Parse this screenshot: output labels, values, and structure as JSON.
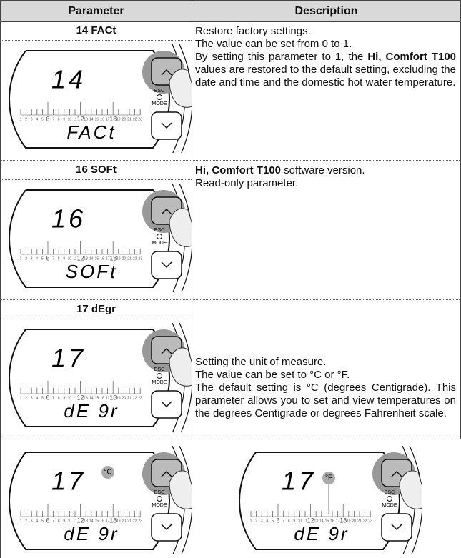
{
  "table": {
    "headers": [
      "Parameter",
      "Description"
    ],
    "rows": [
      {
        "parameter": "14 FACt",
        "display": {
          "number": "14",
          "code": "FACt"
        },
        "description": [
          [
            {
              "text": "Restore factory settings.",
              "bold": false
            }
          ],
          [
            {
              "text": "The value can be set from 0 to 1.",
              "bold": false
            }
          ],
          [
            {
              "text": "By setting this parameter to 1, the ",
              "bold": false
            },
            {
              "text": "Hi, Comfort T100",
              "bold": true
            },
            {
              "text": " values are restored to the default setting, excluding the date and time and the domestic hot water temperature.",
              "bold": false
            }
          ]
        ]
      },
      {
        "parameter": "16 SOFt",
        "display": {
          "number": "16",
          "code": "SOFt"
        },
        "description": [
          [
            {
              "text": "Hi, Comfort T100",
              "bold": true
            },
            {
              "text": " software version.",
              "bold": false
            }
          ],
          [
            {
              "text": "Read-only parameter.",
              "bold": false
            }
          ]
        ]
      },
      {
        "parameter": "17 dEgr",
        "display": {
          "number": "17",
          "code": "dE 9r"
        },
        "description": [
          [
            {
              "text": "Setting the unit of measure.",
              "bold": false
            }
          ],
          [
            {
              "text": "The value can be set to °C or °F.",
              "bold": false
            }
          ],
          [
            {
              "text": "The default setting is °C (degrees Centigrade). This parameter allows you to set and view temperatures on the degrees Centigrade or degrees Fahrenheit scale.",
              "bold": false
            }
          ]
        ]
      }
    ]
  },
  "examples": [
    {
      "display": {
        "number": "17",
        "code": "dE 9r"
      },
      "unit": "°C"
    },
    {
      "display": {
        "number": "17",
        "code": "dE 9r"
      },
      "unit": "°F"
    }
  ],
  "scale": [
    1,
    2,
    3,
    4,
    5,
    6,
    7,
    8,
    9,
    10,
    11,
    12,
    13,
    14,
    15,
    16,
    17,
    18,
    19,
    20,
    21,
    22,
    23
  ],
  "keys": {
    "esc": "ESC",
    "mode": "MODE"
  }
}
